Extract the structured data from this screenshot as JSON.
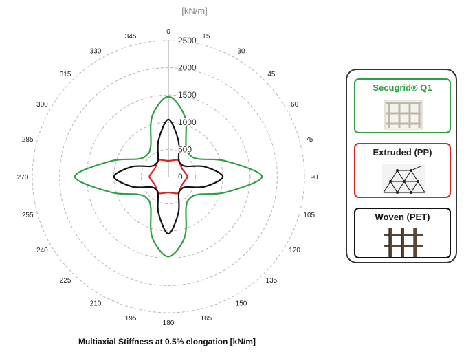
{
  "chart_data": {
    "type": "polar-line",
    "title": "Multiaxial Stiffness at 0.5% elongation [kN/m]",
    "radial_unit_label": "[kN/m]",
    "radial_range": [
      0,
      2500
    ],
    "radial_ticks": [
      0,
      500,
      1000,
      1500,
      2000,
      2500
    ],
    "angle_ticks": [
      0,
      15,
      30,
      45,
      60,
      75,
      90,
      105,
      120,
      135,
      150,
      165,
      180,
      195,
      210,
      225,
      240,
      255,
      270,
      285,
      300,
      315,
      330,
      345
    ],
    "grid": "dashed circles",
    "series": [
      {
        "name": "Secugrid® Q1",
        "color": "#2ea043",
        "angles": [
          0,
          15,
          30,
          45,
          60,
          75,
          90,
          105,
          120,
          135,
          150,
          165,
          180,
          195,
          210,
          225,
          240,
          255,
          270,
          285,
          300,
          315,
          330,
          345
        ],
        "values": [
          1470,
          1150,
          650,
          560,
          650,
          1100,
          1720,
          1100,
          650,
          560,
          650,
          1150,
          1470,
          1150,
          650,
          560,
          650,
          1100,
          1720,
          1100,
          650,
          560,
          650,
          1150
        ]
      },
      {
        "name": "Extruded (PP)",
        "color": "#dd2222",
        "angles": [
          0,
          15,
          30,
          45,
          60,
          75,
          90,
          105,
          120,
          135,
          150,
          165,
          180,
          195,
          210,
          225,
          240,
          255,
          270,
          285,
          300,
          315,
          330,
          345
        ],
        "values": [
          290,
          310,
          350,
          310,
          290,
          310,
          350,
          310,
          290,
          310,
          350,
          310,
          290,
          310,
          350,
          310,
          290,
          310,
          350,
          310,
          290,
          310,
          350,
          310
        ]
      },
      {
        "name": "Woven (PET)",
        "color": "#111111",
        "angles": [
          0,
          15,
          30,
          45,
          60,
          75,
          90,
          105,
          120,
          135,
          150,
          165,
          180,
          195,
          210,
          225,
          240,
          255,
          270,
          285,
          300,
          315,
          330,
          345
        ],
        "values": [
          1050,
          700,
          380,
          330,
          380,
          700,
          1000,
          700,
          380,
          330,
          380,
          700,
          1050,
          700,
          380,
          330,
          380,
          700,
          1000,
          700,
          380,
          330,
          380,
          700
        ]
      }
    ],
    "legend": {
      "placement": "right",
      "entries": [
        "Secugrid® Q1",
        "Extruded (PP)",
        "Woven (PET)"
      ]
    }
  },
  "legend_icons": [
    "grid-square-icon",
    "grid-triangle-icon",
    "grid-woven-icon"
  ]
}
